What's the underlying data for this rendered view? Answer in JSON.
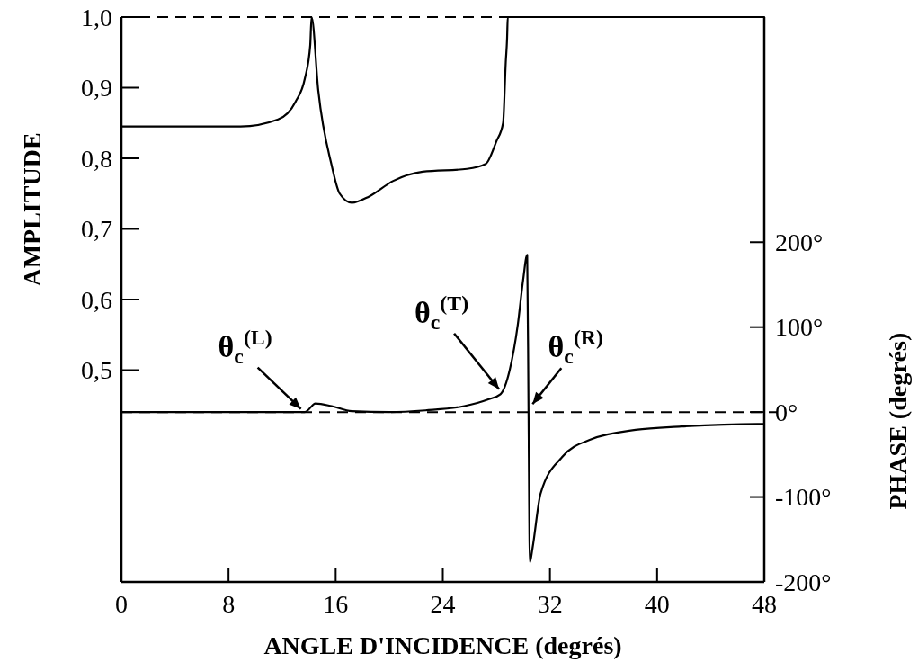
{
  "chart_data": {
    "type": "line",
    "xlabel": "ANGLE D'INCIDENCE  (degrés)",
    "ylabel": "AMPLITUDE",
    "y2label": "PHASE  (degrés)",
    "xlim": [
      0,
      48
    ],
    "xticks": [
      0,
      8,
      16,
      24,
      32,
      40,
      48
    ],
    "ylim": [
      0.2,
      1.0
    ],
    "yticks": [
      {
        "value": 0.5,
        "label": "0,5"
      },
      {
        "value": 0.6,
        "label": "0,6"
      },
      {
        "value": 0.7,
        "label": "0,7"
      },
      {
        "value": 0.8,
        "label": "0,8"
      },
      {
        "value": 0.9,
        "label": "0,9"
      },
      {
        "value": 1.0,
        "label": "1,0"
      }
    ],
    "y2lim": [
      -200,
      465
    ],
    "y2ticks": [
      {
        "value": -200,
        "label": "-200°"
      },
      {
        "value": -100,
        "label": "-100°"
      },
      {
        "value": 0,
        "label": "0°"
      },
      {
        "value": 100,
        "label": "100°"
      },
      {
        "value": 200,
        "label": "200°"
      }
    ],
    "series": [
      {
        "color": "#000000",
        "x": [
          0,
          4,
          8.9,
          11.7,
          13.0,
          13.7,
          14.1,
          14.2,
          14.7,
          15.7,
          16.3,
          17.2,
          18.5,
          20.3,
          22.5,
          25.8,
          27.2,
          28.0,
          28.5,
          28.7,
          28.8,
          28.85,
          36,
          48
        ],
        "values": [
          0.845,
          0.845,
          0.845,
          0.855,
          0.88,
          0.913,
          0.96,
          1.0,
          0.896,
          0.79,
          0.75,
          0.737,
          0.746,
          0.768,
          0.781,
          0.785,
          0.792,
          0.824,
          0.85,
          0.936,
          0.97,
          1.0,
          1.0,
          1.0
        ]
      },
      {
        "color": "#000000",
        "axis": "y2",
        "x": [
          0,
          6,
          13.7,
          14.5,
          15.7,
          17.2,
          20,
          22.7,
          25.6,
          27.4,
          28.3,
          29.0,
          29.6,
          30.0,
          30.3,
          30.4,
          30.5,
          30.7,
          31.3,
          32.9,
          35.1,
          38.4,
          41.8,
          47.5,
          48
        ],
        "values": [
          0,
          0,
          0,
          10,
          7,
          1,
          0,
          2,
          7,
          15,
          21,
          50,
          103,
          156,
          185,
          0,
          -177,
          -160,
          -96,
          -53,
          -32,
          -21,
          -17,
          -14,
          -14
        ]
      }
    ],
    "ref_lines": [
      {
        "axis": "y2",
        "value": 0,
        "line_style": "dashed"
      }
    ],
    "annotations": [
      {
        "text": "θ$_{c}$$^{(L)}$",
        "x": 13.4,
        "y": 0.445
      },
      {
        "text": "θ$_{c}$$^{(T)}$",
        "x": 28.2,
        "y": 0.473
      },
      {
        "text": "θ$_{c}$$^{(R)}$",
        "x": 30.7,
        "y": 0.452
      }
    ],
    "grid": false,
    "line_style": "solid",
    "marker": "none"
  }
}
